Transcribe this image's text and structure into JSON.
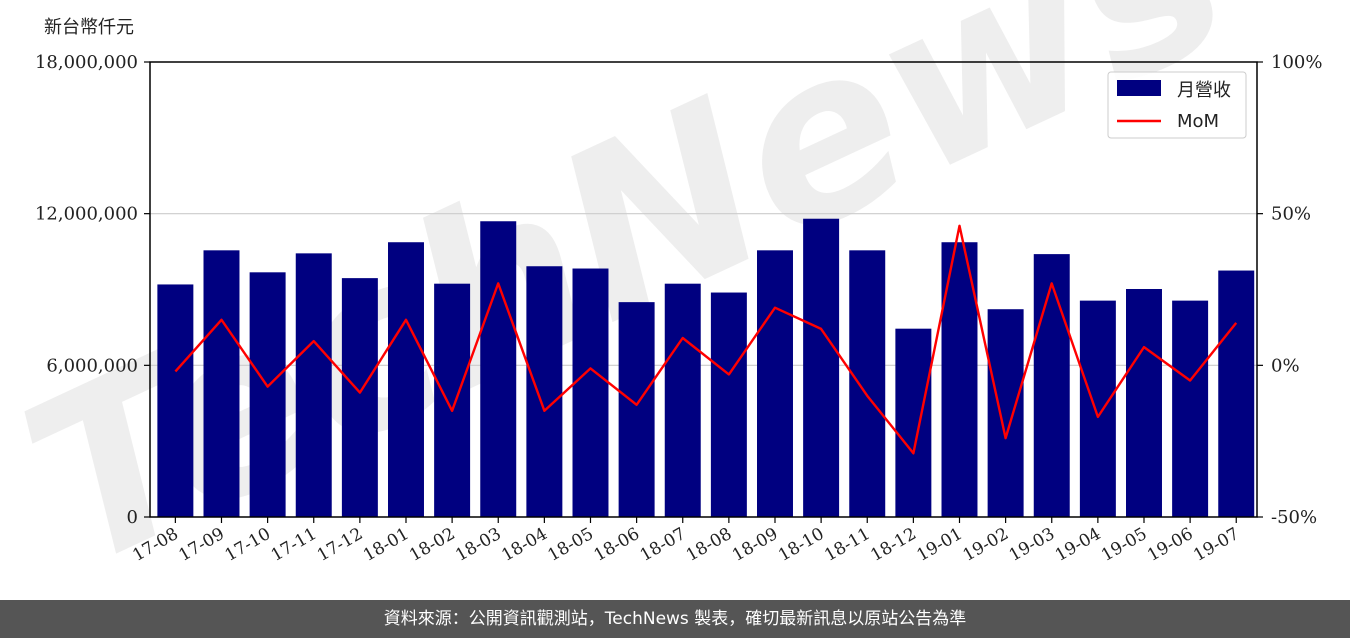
{
  "chart_data": {
    "type": "bar",
    "unit_label": "新台幣仟元",
    "categories": [
      "17-08",
      "17-09",
      "17-10",
      "17-11",
      "17-12",
      "18-01",
      "18-02",
      "18-03",
      "18-04",
      "18-05",
      "18-06",
      "18-07",
      "18-08",
      "18-09",
      "18-10",
      "18-11",
      "18-12",
      "19-01",
      "19-02",
      "19-03",
      "19-04",
      "19-05",
      "19-06",
      "19-07"
    ],
    "series": [
      {
        "name": "月營收",
        "type": "bar",
        "axis": "left",
        "color": "#000080",
        "values": [
          9200000,
          10550000,
          9680000,
          10430000,
          9450000,
          10870000,
          9230000,
          11700000,
          9920000,
          9830000,
          8500000,
          9230000,
          8880000,
          10550000,
          11800000,
          10550000,
          7450000,
          10870000,
          8220000,
          10400000,
          8560000,
          9020000,
          8560000,
          9750000
        ]
      },
      {
        "name": "MoM",
        "type": "line",
        "axis": "right",
        "color": "#ff0000",
        "values": [
          -2,
          15,
          -7,
          8,
          -9,
          15,
          -15,
          27,
          -15,
          -1,
          -13,
          9,
          -3,
          19,
          12,
          -10,
          -29,
          46,
          -24,
          27,
          -17,
          6,
          -5,
          14
        ]
      }
    ],
    "y_left": {
      "min": 0,
      "max": 18000000,
      "ticks": [
        0,
        6000000,
        12000000,
        18000000
      ],
      "tick_labels": [
        "0",
        "6,000,000",
        "12,000,000",
        "18,000,000"
      ]
    },
    "y_right": {
      "min": -50,
      "max": 100,
      "ticks": [
        -50,
        0,
        50,
        100
      ],
      "tick_labels": [
        "-50%",
        "0%",
        "50%",
        "100%"
      ]
    },
    "grid": "horizontal",
    "legend_position": "top-right"
  },
  "watermark": "TechNews",
  "footer": {
    "text": "資料來源：公開資訊觀測站，TechNews 製表，確切最新訊息以原站公告為準"
  }
}
